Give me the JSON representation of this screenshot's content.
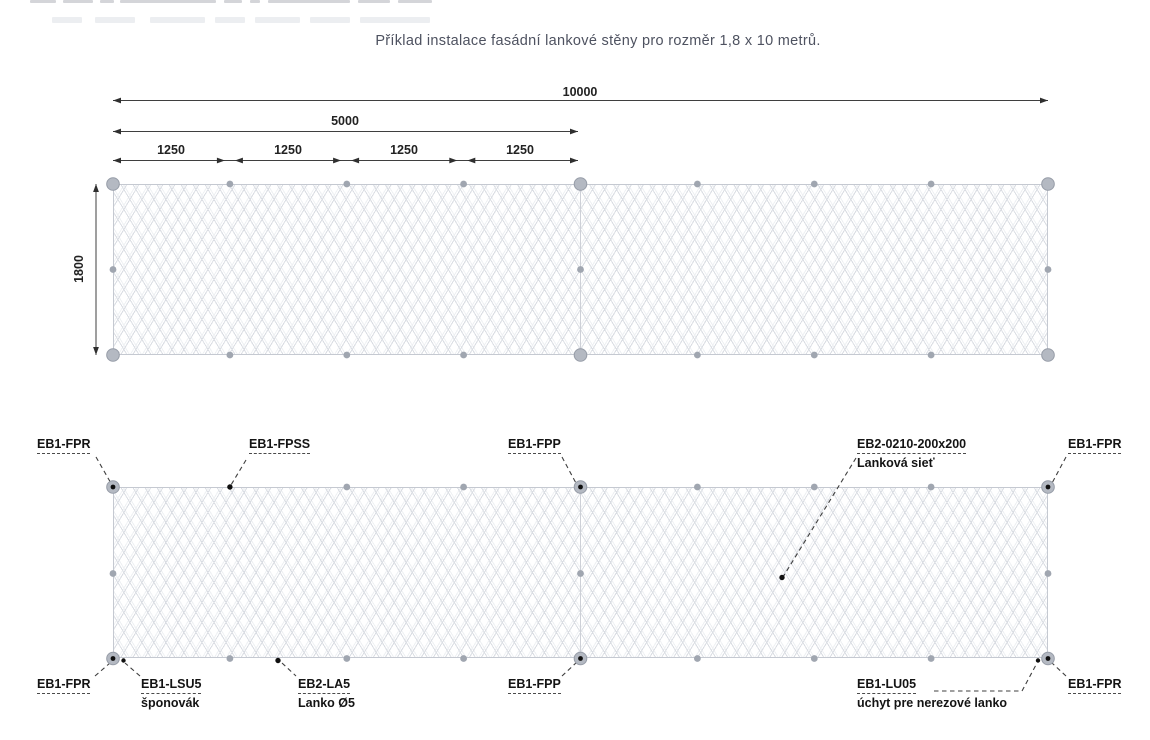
{
  "header": {
    "title": "Příklad instalace fasádní lankové stěny pro rozměr 1,8 x 10 metrů."
  },
  "dimensions": {
    "total_width_mm": "10000",
    "half_width_mm": "5000",
    "segment_mm": "1250",
    "height_mm": "1800"
  },
  "part_labels": {
    "top": [
      {
        "code": "EB1-FPR"
      },
      {
        "code": "EB1-FPSS"
      },
      {
        "code": "EB1-FPP"
      },
      {
        "code": "EB2-0210-200x200",
        "desc": "Lanková sieť"
      },
      {
        "code": "EB1-FPR"
      }
    ],
    "bottom": [
      {
        "code": "EB1-FPR"
      },
      {
        "code": "EB1-LSU5",
        "desc": "šponovák"
      },
      {
        "code": "EB2-LA5",
        "desc": "Lanko Ø5"
      },
      {
        "code": "EB1-FPP"
      },
      {
        "code": "EB1-LU05",
        "desc": "úchyt pre nerezové lanko"
      },
      {
        "code": "EB1-FPR"
      }
    ]
  },
  "colors": {
    "mesh_line": "#dadde3",
    "frame_line": "#c5c9d1",
    "anchor_gray": "#a0a6b0",
    "anchor_large_fill": "#b4b9c2",
    "anchor_black": "#101010",
    "dimension_line": "#3f3f3f",
    "annotation_text": "#141414",
    "title_text": "#4e5260"
  }
}
